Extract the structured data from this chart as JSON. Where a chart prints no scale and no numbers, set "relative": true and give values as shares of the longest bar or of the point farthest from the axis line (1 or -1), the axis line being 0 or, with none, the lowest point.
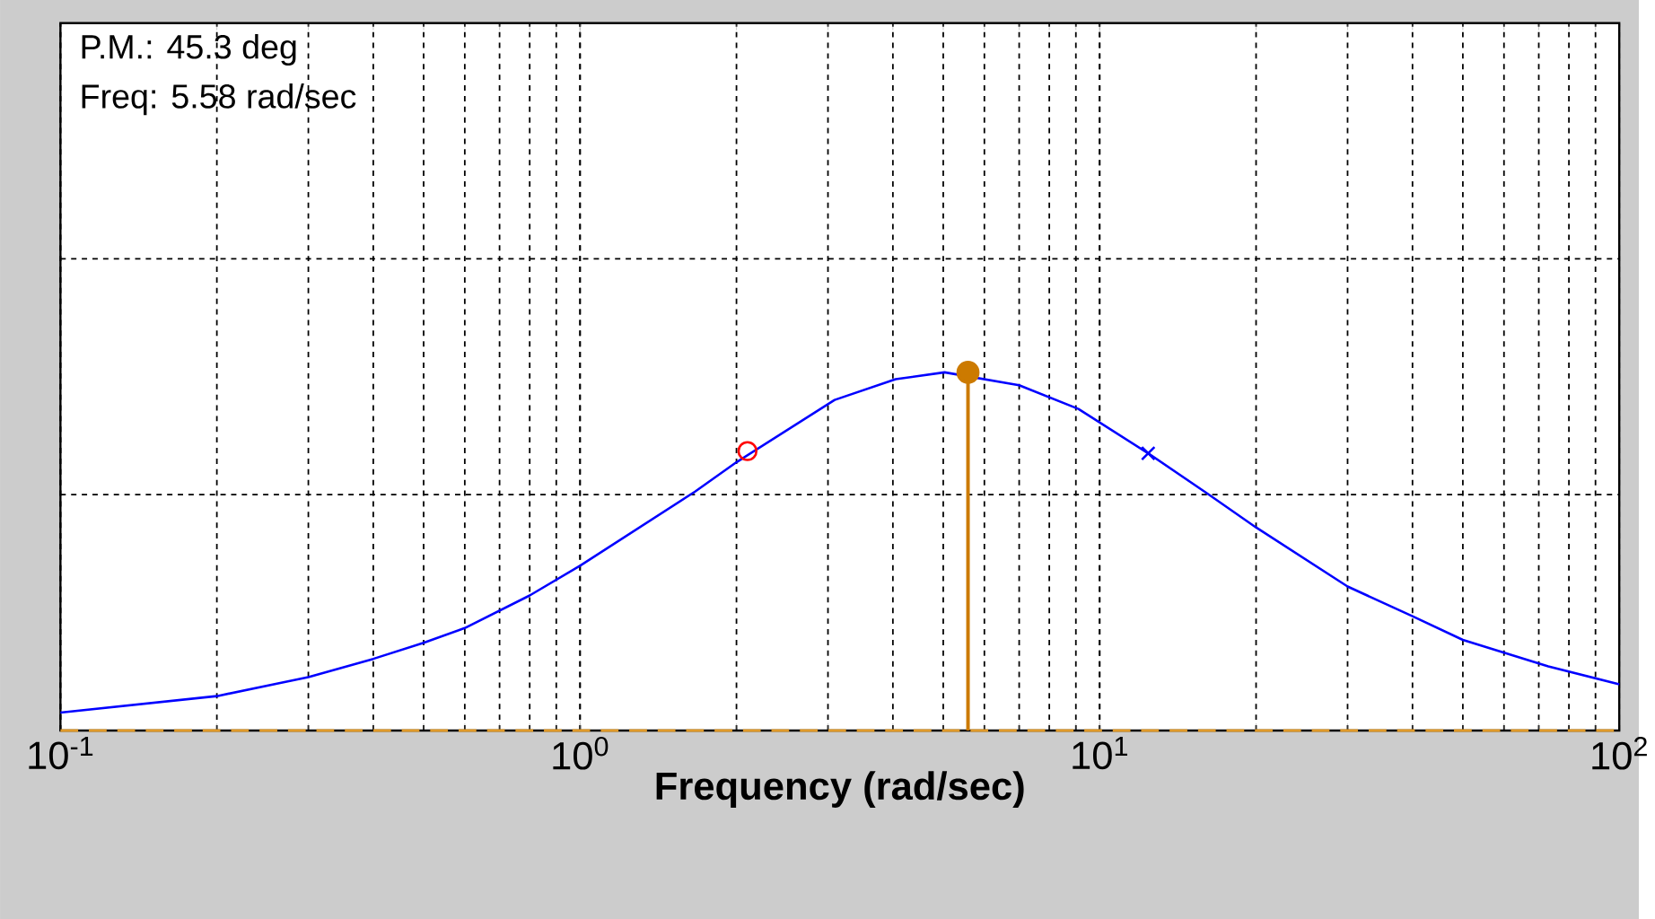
{
  "chart_data": {
    "type": "line",
    "xlabel": "Frequency (rad/sec)",
    "annotations": [
      "P.M.: 45.3 deg",
      "Freq: 5.58 rad/sec"
    ],
    "relative": true,
    "log": "x",
    "grid": true,
    "tick_labels": "x",
    "xlim": [
      0.1,
      100
    ],
    "xticks": [
      {
        "value": 0.1,
        "label": "10$^{-1}$"
      },
      {
        "value": 1,
        "label": "10$^{0}$"
      },
      {
        "value": 10,
        "label": "10$^{1}$"
      },
      {
        "value": 100,
        "label": "10$^{2}$"
      }
    ],
    "ref_lines": [
      {
        "axis": "y",
        "value": 0,
        "color": "#e09a2a",
        "line_style": "dashed"
      }
    ],
    "series": [
      {
        "color": "#0000ff",
        "marker": "none",
        "line_style": "solid",
        "x": [
          0.1,
          0.2,
          0.3,
          0.4,
          0.5,
          0.6,
          0.8,
          1,
          1.665,
          2.0,
          3.09,
          4.05,
          5.03,
          7.0,
          9.1,
          12.4,
          16.1,
          20,
          30,
          40,
          50,
          73,
          100
        ],
        "values": [
          0.05,
          0.096,
          0.149,
          0.2,
          0.245,
          0.286,
          0.377,
          0.46,
          0.667,
          0.749,
          0.923,
          0.981,
          1.0,
          0.964,
          0.898,
          0.774,
          0.662,
          0.567,
          0.402,
          0.319,
          0.253,
          0.179,
          0.129
        ]
      },
      {
        "type": "scatter",
        "color": "#ff0000",
        "marker": "circle",
        "x": [
          2.1
        ],
        "values": [
          0.78
        ]
      },
      {
        "type": "scatter",
        "color": "#0000ff",
        "marker": "cross",
        "x": [
          12.4
        ],
        "values": [
          0.774
        ]
      },
      {
        "type": "lollipop",
        "color": "#cc7a00",
        "marker": "circle",
        "x": [
          5.58
        ],
        "values": [
          1.0
        ]
      }
    ]
  }
}
